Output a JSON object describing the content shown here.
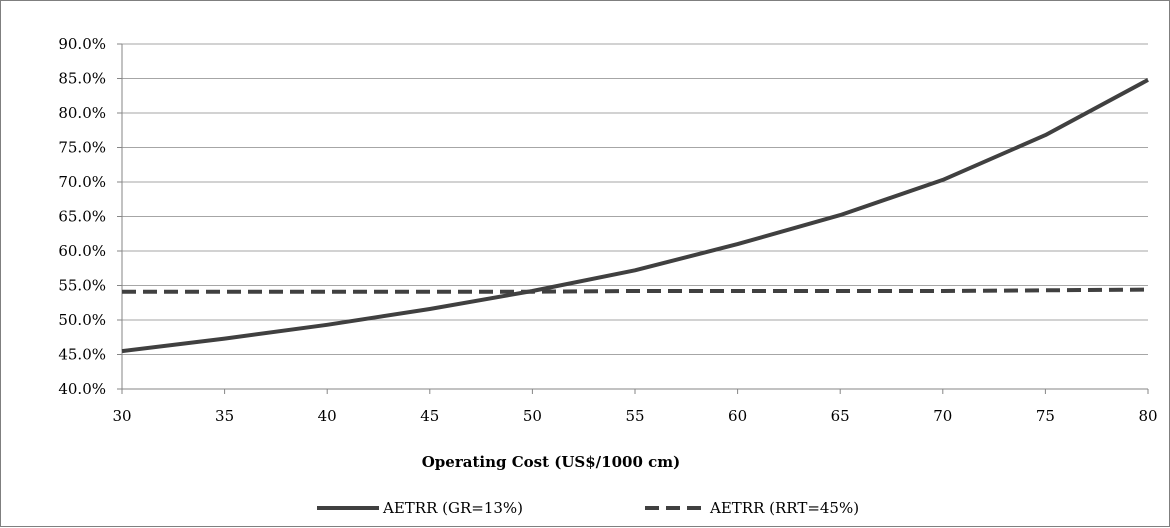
{
  "chart_data": {
    "type": "line",
    "title": "",
    "xlabel": "Operating Cost (US$/1000 cm)",
    "ylabel": "",
    "x": [
      30,
      35,
      40,
      45,
      50,
      55,
      60,
      65,
      70,
      75,
      80
    ],
    "x_tick_labels": [
      "30",
      "35",
      "40",
      "45",
      "50",
      "55",
      "60",
      "65",
      "70",
      "75",
      "80"
    ],
    "xlim": [
      30,
      80
    ],
    "ylim": [
      40,
      90
    ],
    "y_ticks": [
      40,
      45,
      50,
      55,
      60,
      65,
      70,
      75,
      80,
      85,
      90
    ],
    "y_tick_labels": [
      "40.0%",
      "45.0%",
      "50.0%",
      "55.0%",
      "60.0%",
      "65.0%",
      "70.0%",
      "75.0%",
      "80.0%",
      "85.0%",
      "90.0%"
    ],
    "grid": "horizontal",
    "legend_position": "bottom",
    "series": [
      {
        "name": "AETRR (GR=13%)",
        "style": "solid",
        "color": "#404040",
        "values": [
          45.5,
          47.3,
          49.3,
          51.6,
          54.2,
          57.2,
          61.0,
          65.2,
          70.3,
          76.8,
          84.8
        ]
      },
      {
        "name": "AETRR (RRT=45%)",
        "style": "dashed",
        "color": "#404040",
        "values": [
          54.1,
          54.1,
          54.1,
          54.1,
          54.1,
          54.2,
          54.2,
          54.2,
          54.2,
          54.3,
          54.4
        ]
      }
    ]
  },
  "colors": {
    "gridline": "#a6a6a6",
    "axis": "#868686",
    "border": "#7f7f7f",
    "series": "#404040"
  }
}
